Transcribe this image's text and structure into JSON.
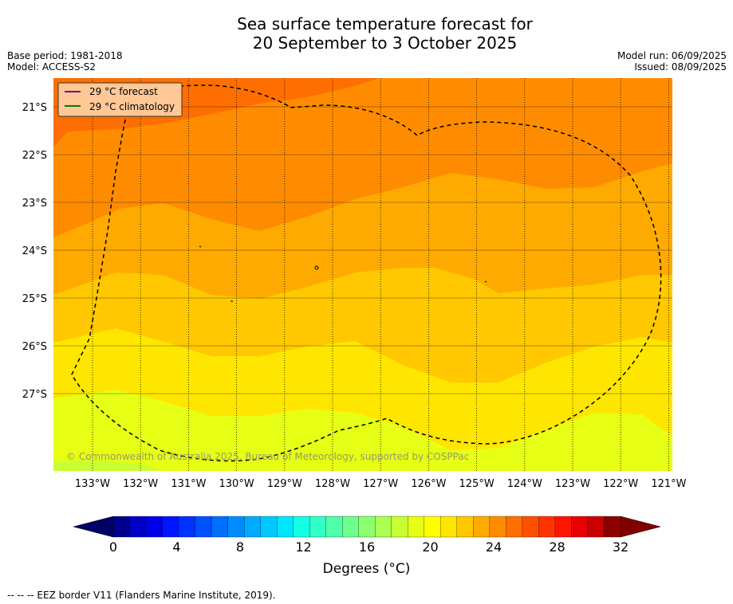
{
  "title_line1": "Sea surface temperature forecast for",
  "title_line2": "20 September to 3 October 2025",
  "base_period": "Base period: 1981-2018",
  "model": "Model: ACCESS-S2",
  "model_run": "Model run: 06/09/2025",
  "issued": "Issued: 08/09/2025",
  "legend": {
    "forecast_label": "29 °C  forecast",
    "climatology_label": "29 °C  climatology",
    "forecast_color": "#800080",
    "climatology_color": "#008000"
  },
  "copyright": "© Commonwealth of Australia 2025, Bureau of Meteorology, supported by COSPPac",
  "lon_labels": [
    "133°W",
    "132°W",
    "131°W",
    "130°W",
    "129°W",
    "128°W",
    "127°W",
    "126°W",
    "125°W",
    "124°W",
    "123°W",
    "122°W",
    "121°W"
  ],
  "lat_labels": [
    "21°S",
    "22°S",
    "23°S",
    "24°S",
    "25°S",
    "26°S",
    "27°S"
  ],
  "colorbar": {
    "ticks": [
      "0",
      "4",
      "8",
      "12",
      "16",
      "20",
      "24",
      "28",
      "32"
    ],
    "label": "Degrees (°C)",
    "colors": [
      "#00008c",
      "#0000c8",
      "#0000e6",
      "#0014ff",
      "#0032ff",
      "#0050ff",
      "#006eff",
      "#008cff",
      "#00aaff",
      "#00c8ff",
      "#00e6ff",
      "#14ffe6",
      "#32ffc8",
      "#50ffaa",
      "#6eff8c",
      "#8cff6e",
      "#aaff50",
      "#c8ff32",
      "#e6ff14",
      "#ffff00",
      "#ffe600",
      "#ffc800",
      "#ffaa00",
      "#ff8c00",
      "#ff6e00",
      "#ff5000",
      "#ff3200",
      "#ff1400",
      "#e60000",
      "#c80000",
      "#8c0000"
    ],
    "under_color": "#000064",
    "over_color": "#800000"
  },
  "footnote": "--  --  -- EEZ border V11 (Flanders Marine Institute, 2019)."
}
